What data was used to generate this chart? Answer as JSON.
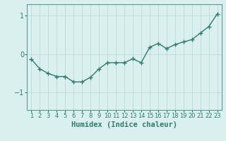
{
  "x": [
    1,
    2,
    3,
    4,
    5,
    6,
    7,
    8,
    9,
    10,
    11,
    12,
    13,
    14,
    15,
    16,
    17,
    18,
    19,
    20,
    21,
    22,
    23
  ],
  "y": [
    -0.13,
    -0.38,
    -0.5,
    -0.58,
    -0.58,
    -0.72,
    -0.72,
    -0.6,
    -0.38,
    -0.22,
    -0.22,
    -0.22,
    -0.12,
    -0.22,
    0.18,
    0.28,
    0.15,
    0.25,
    0.32,
    0.38,
    0.55,
    0.72,
    1.05
  ],
  "line_color": "#2e7d6e",
  "marker": "+",
  "marker_size": 4,
  "line_width": 1.0,
  "bg_color": "#d9f0ee",
  "grid_color": "#b8dbd8",
  "xlabel": "Humidex (Indice chaleur)",
  "yticks": [
    -1,
    0,
    1
  ],
  "xlim": [
    0.5,
    23.5
  ],
  "ylim": [
    -1.45,
    1.3
  ],
  "title_color": "#2e7d6e",
  "xlabel_fontsize": 7.5,
  "tick_fontsize": 7,
  "spine_color": "#5a9e90"
}
